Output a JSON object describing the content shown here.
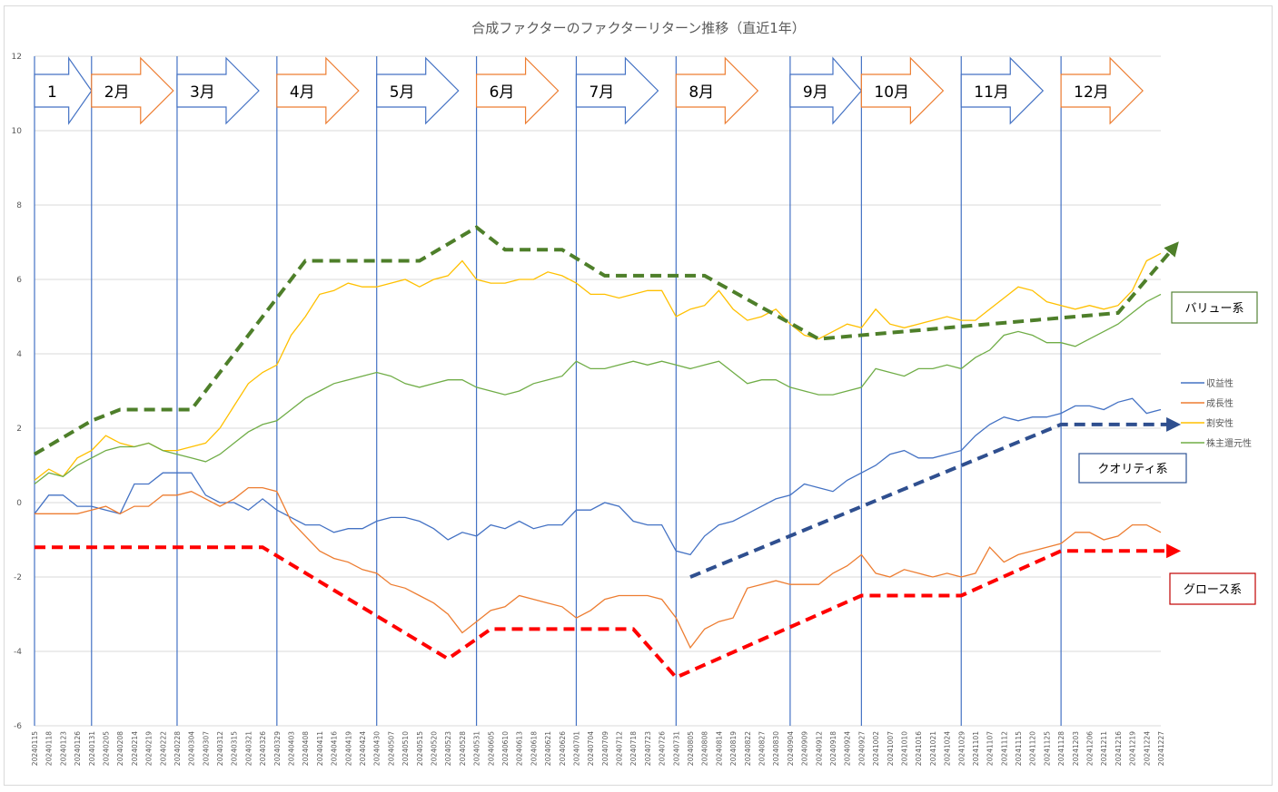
{
  "chart_data": {
    "type": "line",
    "title": "合成ファクターのファクターリターン推移（直近1年）",
    "ylim": [
      -6,
      12
    ],
    "yticks": [
      12,
      10,
      8,
      6,
      4,
      2,
      0,
      -2,
      -4,
      -6
    ],
    "grid": true,
    "legend_position": "right",
    "x": [
      "20240115",
      "20240118",
      "20240123",
      "20240126",
      "20240131",
      "20240205",
      "20240208",
      "20240214",
      "20240219",
      "20240222",
      "20240228",
      "20240304",
      "20240307",
      "20240312",
      "20240315",
      "20240321",
      "20240326",
      "20240329",
      "20240403",
      "20240408",
      "20240411",
      "20240416",
      "20240419",
      "20240424",
      "20240430",
      "20240507",
      "20240510",
      "20240515",
      "20240520",
      "20240523",
      "20240528",
      "20240531",
      "20240605",
      "20240610",
      "20240613",
      "20240618",
      "20240621",
      "20240626",
      "20240701",
      "20240704",
      "20240709",
      "20240712",
      "20240718",
      "20240723",
      "20240726",
      "20240731",
      "20240805",
      "20240808",
      "20240814",
      "20240819",
      "20240822",
      "20240827",
      "20240830",
      "20240904",
      "20240909",
      "20240912",
      "20240918",
      "20240924",
      "20240927",
      "20241002",
      "20241007",
      "20241010",
      "20241016",
      "20241021",
      "20241024",
      "20241029",
      "20241101",
      "20241107",
      "20241112",
      "20241115",
      "20241120",
      "20241125",
      "20241128",
      "20241203",
      "20241206",
      "20241211",
      "20241216",
      "20241219",
      "20241224",
      "20241227"
    ],
    "series": [
      {
        "name": "収益性",
        "color": "#4472c4",
        "values": [
          -0.3,
          0.2,
          0.2,
          -0.1,
          -0.1,
          -0.2,
          -0.3,
          0.5,
          0.5,
          0.8,
          0.8,
          0.8,
          0.2,
          0.0,
          0.0,
          -0.2,
          0.1,
          -0.2,
          -0.4,
          -0.6,
          -0.6,
          -0.8,
          -0.7,
          -0.7,
          -0.5,
          -0.4,
          -0.4,
          -0.5,
          -0.7,
          -1.0,
          -0.8,
          -0.9,
          -0.6,
          -0.7,
          -0.5,
          -0.7,
          -0.6,
          -0.6,
          -0.2,
          -0.2,
          0.0,
          -0.1,
          -0.5,
          -0.6,
          -0.6,
          -1.3,
          -1.4,
          -0.9,
          -0.6,
          -0.5,
          -0.3,
          -0.1,
          0.1,
          0.2,
          0.5,
          0.4,
          0.3,
          0.6,
          0.8,
          1.0,
          1.3,
          1.4,
          1.2,
          1.2,
          1.3,
          1.4,
          1.8,
          2.1,
          2.3,
          2.2,
          2.3,
          2.3,
          2.4,
          2.6,
          2.6,
          2.5,
          2.7,
          2.8,
          2.4,
          2.5
        ]
      },
      {
        "name": "成長性",
        "color": "#ed7d31",
        "values": [
          -0.3,
          -0.3,
          -0.3,
          -0.3,
          -0.2,
          -0.1,
          -0.3,
          -0.1,
          -0.1,
          0.2,
          0.2,
          0.3,
          0.1,
          -0.1,
          0.1,
          0.4,
          0.4,
          0.3,
          -0.5,
          -0.9,
          -1.3,
          -1.5,
          -1.6,
          -1.8,
          -1.9,
          -2.2,
          -2.3,
          -2.5,
          -2.7,
          -3.0,
          -3.5,
          -3.2,
          -2.9,
          -2.8,
          -2.5,
          -2.6,
          -2.7,
          -2.8,
          -3.1,
          -2.9,
          -2.6,
          -2.5,
          -2.5,
          -2.5,
          -2.6,
          -3.1,
          -3.9,
          -3.4,
          -3.2,
          -3.1,
          -2.3,
          -2.2,
          -2.1,
          -2.2,
          -2.2,
          -2.2,
          -1.9,
          -1.7,
          -1.4,
          -1.9,
          -2.0,
          -1.8,
          -1.9,
          -2.0,
          -1.9,
          -2.0,
          -1.9,
          -1.2,
          -1.6,
          -1.4,
          -1.3,
          -1.2,
          -1.1,
          -0.8,
          -0.8,
          -1.0,
          -0.9,
          -0.6,
          -0.6,
          -0.8
        ]
      },
      {
        "name": "割安性",
        "color": "#ffc000",
        "values": [
          0.6,
          0.9,
          0.7,
          1.2,
          1.4,
          1.8,
          1.6,
          1.5,
          1.6,
          1.4,
          1.4,
          1.5,
          1.6,
          2.0,
          2.6,
          3.2,
          3.5,
          3.7,
          4.5,
          5.0,
          5.6,
          5.7,
          5.9,
          5.8,
          5.8,
          5.9,
          6.0,
          5.8,
          6.0,
          6.1,
          6.5,
          6.0,
          5.9,
          5.9,
          6.0,
          6.0,
          6.2,
          6.1,
          5.9,
          5.6,
          5.6,
          5.5,
          5.6,
          5.7,
          5.7,
          5.0,
          5.2,
          5.3,
          5.7,
          5.2,
          4.9,
          5.0,
          5.2,
          4.8,
          4.5,
          4.4,
          4.6,
          4.8,
          4.7,
          5.2,
          4.8,
          4.7,
          4.8,
          4.9,
          5.0,
          4.9,
          4.9,
          5.2,
          5.5,
          5.8,
          5.7,
          5.4,
          5.3,
          5.2,
          5.3,
          5.2,
          5.3,
          5.7,
          6.5,
          6.7
        ]
      },
      {
        "name": "株主還元性",
        "color": "#70ad47",
        "values": [
          0.5,
          0.8,
          0.7,
          1.0,
          1.2,
          1.4,
          1.5,
          1.5,
          1.6,
          1.4,
          1.3,
          1.2,
          1.1,
          1.3,
          1.6,
          1.9,
          2.1,
          2.2,
          2.5,
          2.8,
          3.0,
          3.2,
          3.3,
          3.4,
          3.5,
          3.4,
          3.2,
          3.1,
          3.2,
          3.3,
          3.3,
          3.1,
          3.0,
          2.9,
          3.0,
          3.2,
          3.3,
          3.4,
          3.8,
          3.6,
          3.6,
          3.7,
          3.8,
          3.7,
          3.8,
          3.7,
          3.6,
          3.7,
          3.8,
          3.5,
          3.2,
          3.3,
          3.3,
          3.1,
          3.0,
          2.9,
          2.9,
          3.0,
          3.1,
          3.6,
          3.5,
          3.4,
          3.6,
          3.6,
          3.7,
          3.6,
          3.9,
          4.1,
          4.5,
          4.6,
          4.5,
          4.3,
          4.3,
          4.2,
          4.4,
          4.6,
          4.8,
          5.1,
          5.4,
          5.6
        ]
      }
    ],
    "months": [
      "1",
      "2月",
      "3月",
      "4月",
      "5月",
      "6月",
      "7月",
      "8月",
      "9月",
      "10月",
      "11月",
      "12月"
    ],
    "annotations": {
      "value": "バリュー系",
      "quality": "クオリティ系",
      "growth": "グロース系"
    }
  }
}
